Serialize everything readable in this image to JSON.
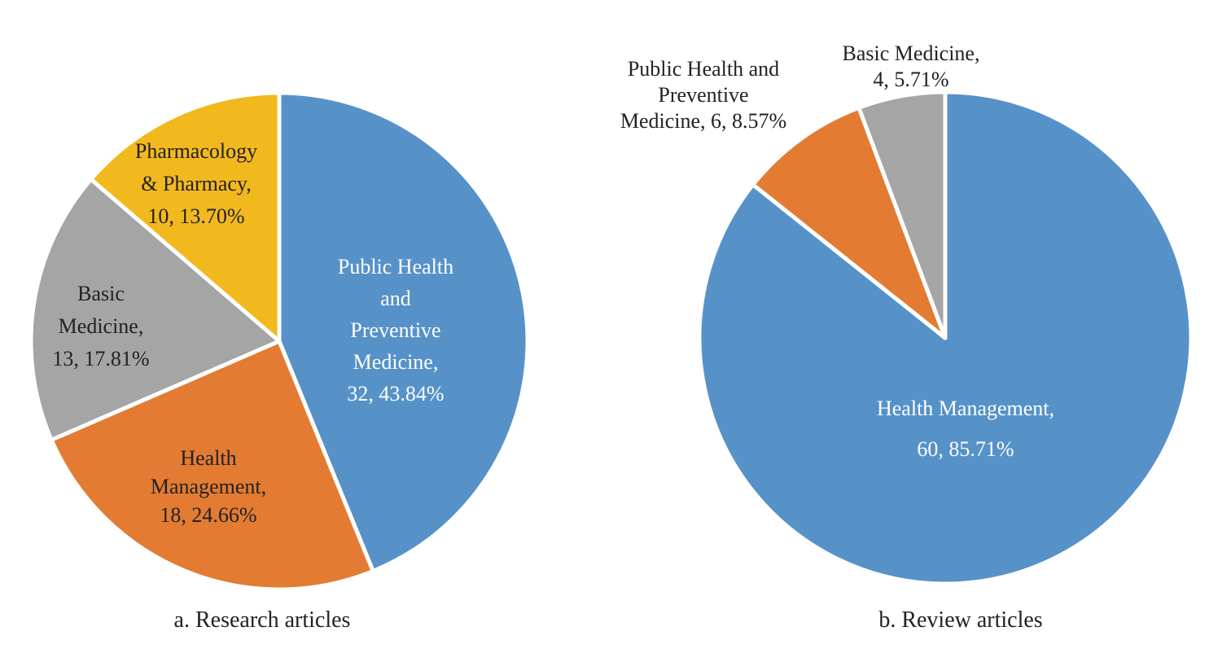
{
  "chart_data": [
    {
      "type": "pie",
      "title": "a. Research articles",
      "slices": [
        {
          "label": [
            "Public Health",
            "and",
            "Preventive",
            "Medicine,"
          ],
          "count_label": "32, 43.84%",
          "value": 32,
          "percent": 43.84,
          "color": "#5692C8",
          "text_color": "#ffffff"
        },
        {
          "label": [
            "Health",
            "Management,"
          ],
          "count_label": "18, 24.66%",
          "value": 18,
          "percent": 24.66,
          "color": "#E37B33",
          "text_color": "#222222"
        },
        {
          "label": [
            "Basic",
            "Medicine,"
          ],
          "count_label": "13, 17.81%",
          "value": 13,
          "percent": 17.81,
          "color": "#A5A5A5",
          "text_color": "#222222"
        },
        {
          "label": [
            "Pharmacology",
            "& Pharmacy,"
          ],
          "count_label": "10, 13.70%",
          "value": 10,
          "percent": 13.7,
          "color": "#F2B91E",
          "text_color": "#222222"
        }
      ]
    },
    {
      "type": "pie",
      "title": "b. Review articles",
      "slices": [
        {
          "label": [
            "Health Management,"
          ],
          "count_label": "60, 85.71%",
          "value": 60,
          "percent": 85.71,
          "color": "#5692C8",
          "text_color": "#ffffff"
        },
        {
          "label": [
            "Public Health and",
            "Preventive"
          ],
          "count_label": "Medicine, 6, 8.57%",
          "value": 6,
          "percent": 8.57,
          "color": "#E37B33",
          "text_color": "#222222"
        },
        {
          "label": [
            "Basic Medicine,"
          ],
          "count_label": "4, 5.71%",
          "value": 4,
          "percent": 5.71,
          "color": "#A5A5A5",
          "text_color": "#222222"
        }
      ]
    }
  ]
}
